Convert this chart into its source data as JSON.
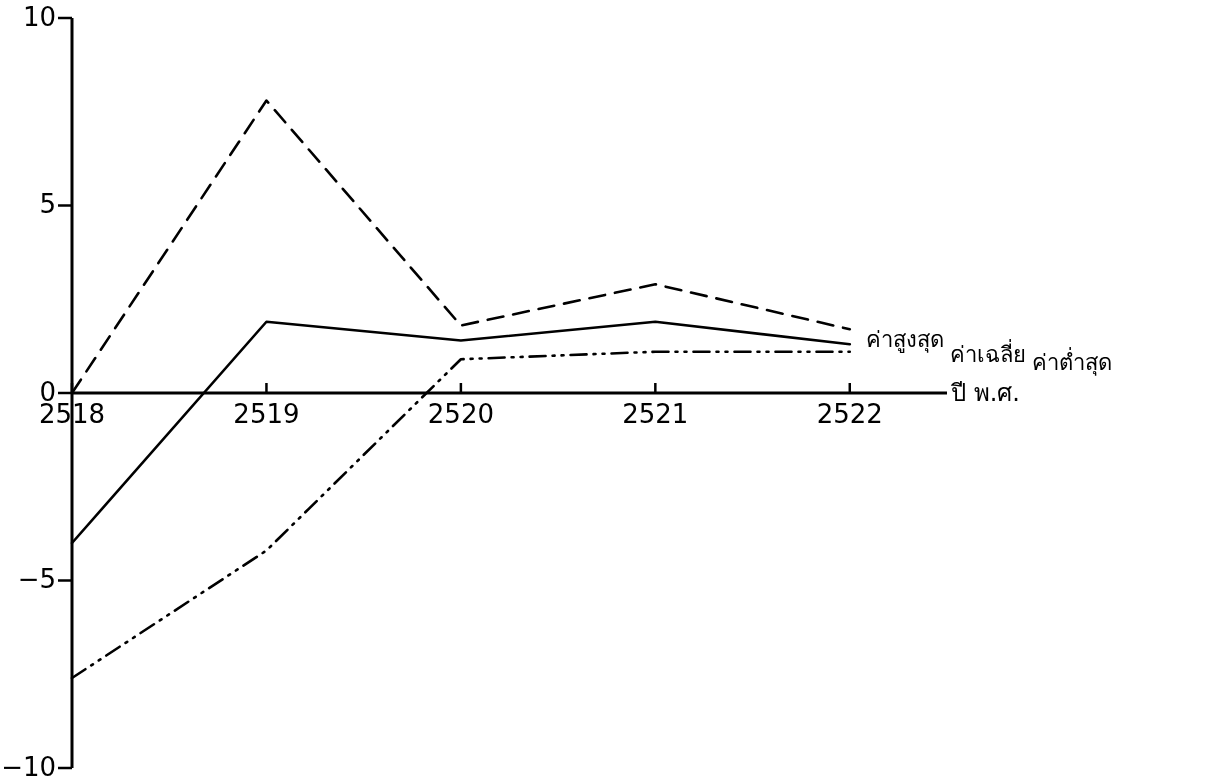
{
  "chart_data": {
    "type": "line",
    "xlabel": "ปี พ.ศ.",
    "x": [
      2518,
      2519,
      2520,
      2521,
      2522
    ],
    "xlim": [
      2518,
      2522.5
    ],
    "xticks": [
      2518,
      2519,
      2520,
      2521,
      2522
    ],
    "ylim": [
      -10,
      10
    ],
    "yticks": [
      -10,
      -5,
      0,
      5,
      10
    ],
    "series": [
      {
        "name": "ค่าสูงสุด",
        "color": "#000000",
        "line_style": "dashed",
        "values": [
          0,
          7.8,
          1.8,
          2.9,
          1.7
        ]
      },
      {
        "name": "ค่าเฉลี่ย",
        "color": "#000000",
        "line_style": "solid",
        "values": [
          -4.0,
          1.9,
          1.4,
          1.9,
          1.3
        ]
      },
      {
        "name": "ค่าต่ำสุด",
        "color": "#000000",
        "line_style": "dashdotdot",
        "values": [
          -7.6,
          -4.2,
          0.9,
          1.1,
          1.1
        ]
      }
    ]
  }
}
